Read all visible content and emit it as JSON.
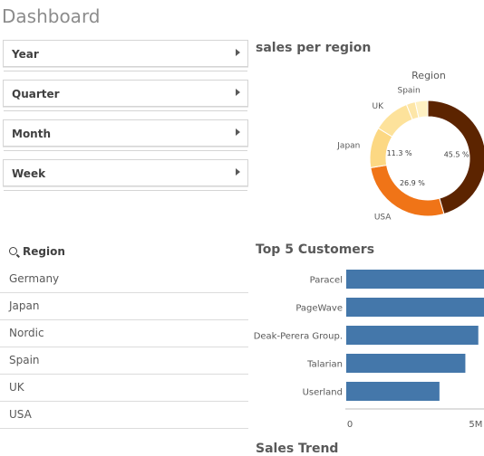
{
  "dashboard": {
    "title": "Dashboard"
  },
  "filters": [
    {
      "label": "Year"
    },
    {
      "label": "Quarter"
    },
    {
      "label": "Month"
    },
    {
      "label": "Week"
    }
  ],
  "region_list": {
    "header": "Region",
    "items": [
      "Germany",
      "Japan",
      "Nordic",
      "Spain",
      "UK",
      "USA"
    ]
  },
  "charts": {
    "sales_title": "sales per region",
    "customers_title": "Top 5 Customers",
    "bottom_title": "Sales Trend"
  },
  "colors": {
    "bar": "#4477aa"
  },
  "chart_data": [
    {
      "type": "pie",
      "title": "sales per region",
      "legend_title": "Region",
      "slices": [
        {
          "name": "",
          "value": 45.5,
          "label": "45.5 %",
          "color": "#5c2400"
        },
        {
          "name": "USA",
          "value": 26.9,
          "label": "26.9 %",
          "color": "#f07417"
        },
        {
          "name": "Japan",
          "value": 11.3,
          "label": "11.3 %",
          "color": "#fcd883"
        },
        {
          "name": "UK",
          "value": 10.3,
          "label": "",
          "color": "#fde29b"
        },
        {
          "name": "",
          "value": 2.5,
          "label": "",
          "color": "#fde6a8"
        },
        {
          "name": "Spain",
          "value": 3.5,
          "label": "",
          "color": "#fef0c2"
        }
      ]
    },
    {
      "type": "bar",
      "orientation": "horizontal",
      "title": "Top 5 Customers",
      "categories": [
        "Paracel",
        "PageWave",
        "Deak-Perera Group.",
        "Talarian",
        "Userland"
      ],
      "values": [
        5.6,
        5.5,
        5.1,
        4.6,
        3.6
      ],
      "xlim": [
        0,
        5.6
      ],
      "xticks": [
        {
          "value": 0,
          "label": "0"
        },
        {
          "value": 5,
          "label": "5M"
        }
      ]
    }
  ]
}
